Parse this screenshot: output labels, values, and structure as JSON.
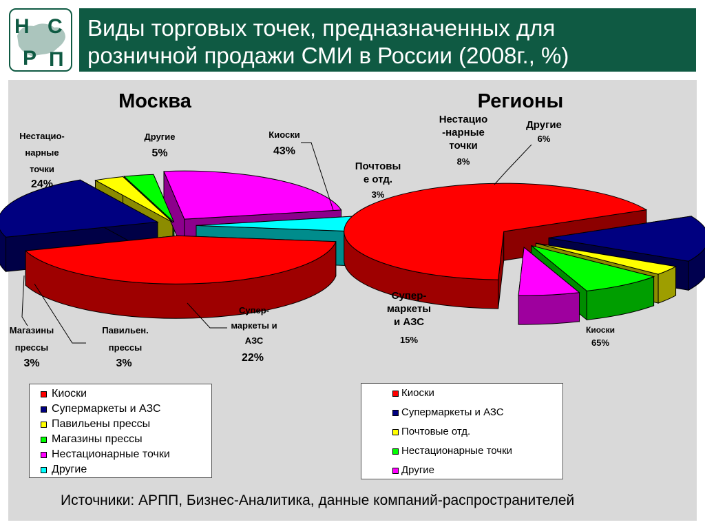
{
  "title": "Виды торговых точек, предназначенных для розничной продажи СМИ в России (2008г., %)",
  "title_lines": [
    "Виды торговых точек, предназначенных для",
    "розничной продажи СМИ в России (2008г., %)"
  ],
  "logo": {
    "text": "НСРП",
    "colors": {
      "bg": "#ffffff",
      "fg": "#0f5a43"
    }
  },
  "colors": {
    "title_bar": "#0f5a43",
    "panel": "#d9d9d9",
    "kiosks": "#ff0000",
    "supermarkets": "#000080",
    "pavilions": "#ffff00",
    "post": "#ffff00",
    "press_shops": "#00ff00",
    "nonstationary": "#ff00ff",
    "other": "#00ffff"
  },
  "chart_data": [
    {
      "type": "pie",
      "title": "Москва",
      "slices": [
        {
          "label": "Киоски",
          "value": 43
        },
        {
          "label": "Супермаркеты и АЗС",
          "value": 22
        },
        {
          "label": "Павильены прессы",
          "value": 3
        },
        {
          "label": "Магазины прессы",
          "value": 3
        },
        {
          "label": "Нестационарные точки",
          "value": 24
        },
        {
          "label": "Другие",
          "value": 5
        }
      ],
      "data_labels": [
        {
          "lines": [
            "Киоски"
          ],
          "value": "43%"
        },
        {
          "lines": [
            "Супер-",
            "маркеты и",
            "АЗС"
          ],
          "value": "22%"
        },
        {
          "lines": [
            "Павильен.",
            "прессы"
          ],
          "value": "3%"
        },
        {
          "lines": [
            "Магазины",
            "прессы"
          ],
          "value": "3%"
        },
        {
          "lines": [
            "Нестацио-",
            "нарные",
            "точки"
          ],
          "value": "24%"
        },
        {
          "lines": [
            "Другие"
          ],
          "value": "5%"
        }
      ],
      "legend": [
        "Киоски",
        "Супермаркеты и АЗС",
        "Павильены прессы",
        "Магазины прессы",
        "Нестационарные точки",
        "Другие"
      ]
    },
    {
      "type": "pie",
      "title": "Регионы",
      "slices": [
        {
          "label": "Киоски",
          "value": 65
        },
        {
          "label": "Супермаркеты и АЗС",
          "value": 15
        },
        {
          "label": "Почтовые отд.",
          "value": 3
        },
        {
          "label": "Нестационарные точки",
          "value": 8
        },
        {
          "label": "Другие",
          "value": 6
        }
      ],
      "data_labels": [
        {
          "lines": [
            "Киоски"
          ],
          "value": "65%"
        },
        {
          "lines": [
            "Супер-",
            "маркеты",
            "и АЗС"
          ],
          "value": "15%"
        },
        {
          "lines": [
            "Почтовы",
            "е отд."
          ],
          "value": "3%"
        },
        {
          "lines": [
            "Нестацио",
            "-нарные",
            "точки"
          ],
          "value": "8%"
        },
        {
          "lines": [
            "Другие"
          ],
          "value": "6%"
        }
      ],
      "legend": [
        "Киоски",
        "Супермаркеты и АЗС",
        "Почтовые отд.",
        "Нестационарные точки",
        "Другие"
      ]
    }
  ],
  "footer": "Источники: АРПП, Бизнес-Аналитика, данные компаний-распространителей"
}
